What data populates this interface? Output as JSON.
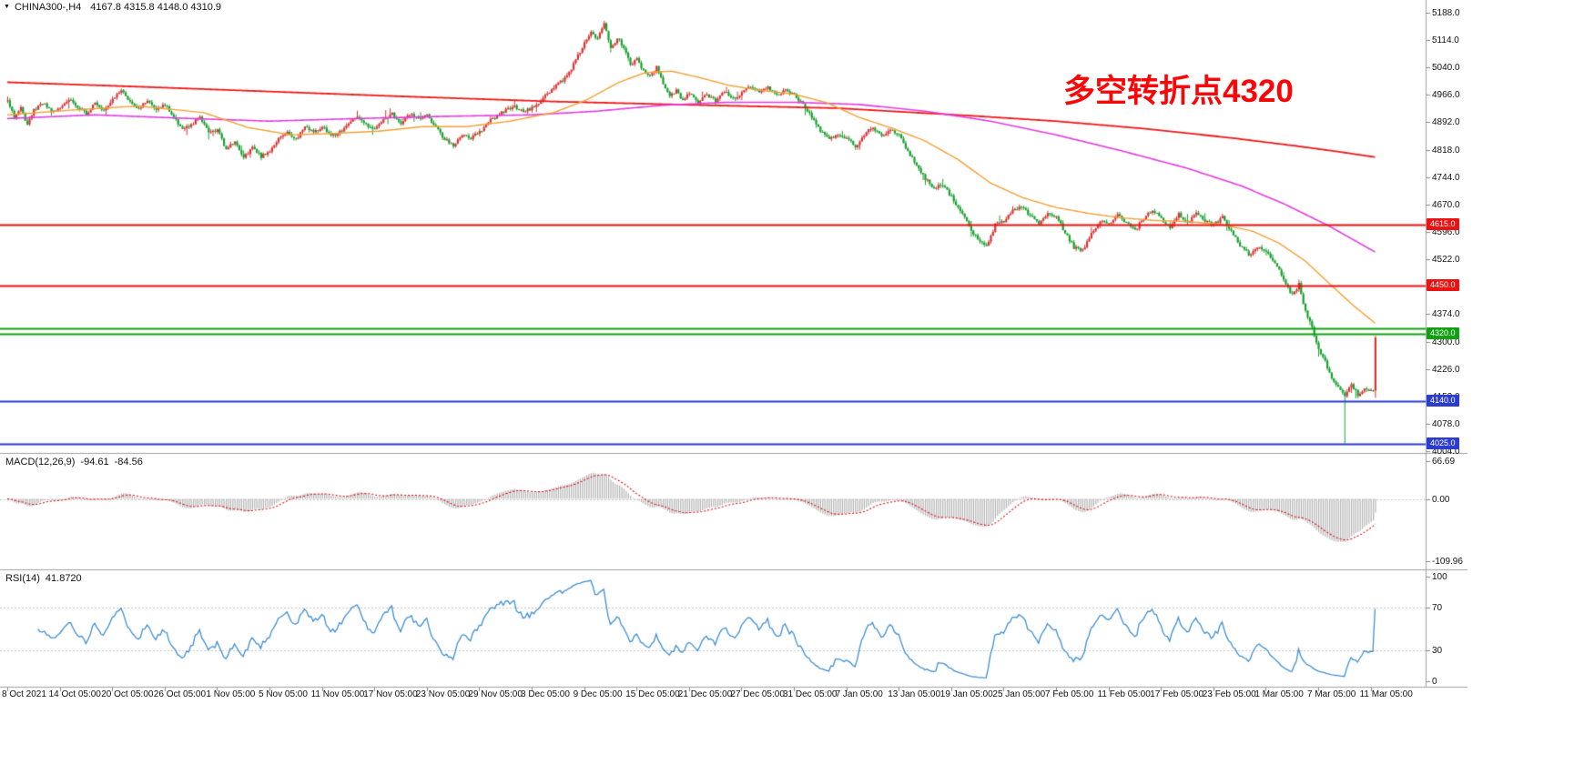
{
  "window": {
    "dropdown_icon": "▼",
    "symbol_timeframe": "CHINA300-,H4",
    "ohlc": "4167.8 4315.8 4148.0 4310.9"
  },
  "annotation": {
    "text": "多空转折点4320",
    "color": "#fb0606"
  },
  "colors": {
    "candle_up": "#d93232",
    "candle_down": "#17a02e",
    "macd_hist": "#b4b4b4",
    "macd_signal": "#e01010",
    "rsi_line": "#3f8fd2",
    "axis_text": "#111111",
    "separator": "#a0a0a0",
    "background": "#ffffff"
  },
  "chart_data": {
    "type": "candlestick",
    "symbol": "CHINA300-",
    "timeframe": "H4",
    "last_candle": {
      "open": 4167.8,
      "high": 4315.8,
      "low": 4148.0,
      "close": 4310.9
    },
    "price_axis": {
      "min": 4002,
      "max": 5222,
      "ticks": [
        "5188.0",
        "5114.0",
        "5040.0",
        "4966.0",
        "4892.0",
        "4818.0",
        "4744.0",
        "4670.0",
        "4596.0",
        "4522.0",
        "4448.0",
        "4374.0",
        "4300.0",
        "4226.0",
        "4152.0",
        "4078.0",
        "4004.0"
      ]
    },
    "time_labels": [
      "8 Oct 2021",
      "14 Oct 05:00",
      "20 Oct 05:00",
      "26 Oct 05:00",
      "1 Nov 05:00",
      "5 Nov 05:00",
      "11 Nov 05:00",
      "17 Nov 05:00",
      "23 Nov 05:00",
      "29 Nov 05:00",
      "3 Dec 05:00",
      "9 Dec 05:00",
      "15 Dec 05:00",
      "21 Dec 05:00",
      "27 Dec 05:00",
      "31 Dec 05:00",
      "7 Jan 05:00",
      "13 Jan 05:00",
      "19 Jan 05:00",
      "25 Jan 05:00",
      "7 Feb 05:00",
      "11 Feb 05:00",
      "17 Feb 05:00",
      "23 Feb 05:00",
      "1 Mar 05:00",
      "7 Mar 05:00",
      "11 Mar 05:00"
    ],
    "hlines": [
      {
        "price": 4615.0,
        "label": "4615.0",
        "color": "#ee1111",
        "width": 2
      },
      {
        "price": 4450.0,
        "label": "4450.0",
        "color": "#ee1111",
        "width": 2
      },
      {
        "price": 4336.0,
        "label": "",
        "color": "#11a011",
        "width": 2
      },
      {
        "price": 4320.0,
        "label": "4320.0",
        "color": "#11a011",
        "width": 2
      },
      {
        "price": 4140.0,
        "label": "4140.0",
        "color": "#2b3cd0",
        "width": 2
      },
      {
        "price": 4025.0,
        "label": "4025.0",
        "color": "#2b3cd0",
        "width": 2
      }
    ],
    "spike_low": {
      "index": 612,
      "low": 4025.0
    },
    "close_path": [
      [
        0,
        4950
      ],
      [
        3,
        4905
      ],
      [
        6,
        4930
      ],
      [
        9,
        4885
      ],
      [
        12,
        4925
      ],
      [
        16,
        4945
      ],
      [
        20,
        4920
      ],
      [
        24,
        4930
      ],
      [
        28,
        4955
      ],
      [
        32,
        4935
      ],
      [
        36,
        4915
      ],
      [
        40,
        4945
      ],
      [
        44,
        4925
      ],
      [
        48,
        4955
      ],
      [
        52,
        4975
      ],
      [
        56,
        4950
      ],
      [
        60,
        4930
      ],
      [
        64,
        4950
      ],
      [
        68,
        4930
      ],
      [
        72,
        4940
      ],
      [
        76,
        4905
      ],
      [
        80,
        4870
      ],
      [
        84,
        4885
      ],
      [
        88,
        4905
      ],
      [
        92,
        4865
      ],
      [
        96,
        4870
      ],
      [
        100,
        4820
      ],
      [
        104,
        4840
      ],
      [
        108,
        4795
      ],
      [
        112,
        4825
      ],
      [
        116,
        4800
      ],
      [
        120,
        4815
      ],
      [
        124,
        4850
      ],
      [
        128,
        4865
      ],
      [
        132,
        4845
      ],
      [
        136,
        4880
      ],
      [
        140,
        4865
      ],
      [
        144,
        4880
      ],
      [
        148,
        4855
      ],
      [
        152,
        4865
      ],
      [
        156,
        4890
      ],
      [
        160,
        4905
      ],
      [
        164,
        4885
      ],
      [
        168,
        4875
      ],
      [
        172,
        4900
      ],
      [
        176,
        4915
      ],
      [
        180,
        4890
      ],
      [
        184,
        4915
      ],
      [
        188,
        4900
      ],
      [
        192,
        4910
      ],
      [
        196,
        4880
      ],
      [
        200,
        4845
      ],
      [
        204,
        4830
      ],
      [
        208,
        4860
      ],
      [
        212,
        4850
      ],
      [
        216,
        4865
      ],
      [
        220,
        4895
      ],
      [
        224,
        4910
      ],
      [
        228,
        4925
      ],
      [
        232,
        4935
      ],
      [
        236,
        4920
      ],
      [
        240,
        4930
      ],
      [
        244,
        4950
      ],
      [
        248,
        4975
      ],
      [
        252,
        4995
      ],
      [
        256,
        5015
      ],
      [
        260,
        5060
      ],
      [
        264,
        5105
      ],
      [
        267,
        5140
      ],
      [
        270,
        5115
      ],
      [
        273,
        5158
      ],
      [
        276,
        5090
      ],
      [
        279,
        5120
      ],
      [
        282,
        5095
      ],
      [
        285,
        5045
      ],
      [
        288,
        5065
      ],
      [
        291,
        5030
      ],
      [
        294,
        5015
      ],
      [
        297,
        5040
      ],
      [
        300,
        4995
      ],
      [
        303,
        4960
      ],
      [
        306,
        4980
      ],
      [
        309,
        4950
      ],
      [
        312,
        4970
      ],
      [
        316,
        4945
      ],
      [
        320,
        4965
      ],
      [
        324,
        4950
      ],
      [
        328,
        4975
      ],
      [
        332,
        4955
      ],
      [
        336,
        4970
      ],
      [
        340,
        4990
      ],
      [
        344,
        4970
      ],
      [
        348,
        4985
      ],
      [
        352,
        4965
      ],
      [
        356,
        4980
      ],
      [
        360,
        4965
      ],
      [
        364,
        4940
      ],
      [
        368,
        4905
      ],
      [
        372,
        4870
      ],
      [
        376,
        4845
      ],
      [
        380,
        4860
      ],
      [
        384,
        4850
      ],
      [
        388,
        4825
      ],
      [
        392,
        4860
      ],
      [
        396,
        4880
      ],
      [
        400,
        4855
      ],
      [
        404,
        4875
      ],
      [
        408,
        4855
      ],
      [
        412,
        4815
      ],
      [
        416,
        4775
      ],
      [
        420,
        4740
      ],
      [
        424,
        4715
      ],
      [
        428,
        4725
      ],
      [
        432,
        4690
      ],
      [
        436,
        4655
      ],
      [
        440,
        4610
      ],
      [
        444,
        4575
      ],
      [
        448,
        4555
      ],
      [
        452,
        4615
      ],
      [
        456,
        4625
      ],
      [
        460,
        4655
      ],
      [
        464,
        4665
      ],
      [
        468,
        4640
      ],
      [
        472,
        4620
      ],
      [
        476,
        4645
      ],
      [
        480,
        4635
      ],
      [
        484,
        4595
      ],
      [
        488,
        4555
      ],
      [
        492,
        4545
      ],
      [
        496,
        4595
      ],
      [
        500,
        4625
      ],
      [
        504,
        4615
      ],
      [
        508,
        4645
      ],
      [
        512,
        4620
      ],
      [
        516,
        4600
      ],
      [
        520,
        4635
      ],
      [
        524,
        4655
      ],
      [
        528,
        4630
      ],
      [
        532,
        4605
      ],
      [
        536,
        4645
      ],
      [
        540,
        4620
      ],
      [
        544,
        4650
      ],
      [
        548,
        4625
      ],
      [
        552,
        4615
      ],
      [
        556,
        4635
      ],
      [
        560,
        4600
      ],
      [
        564,
        4560
      ],
      [
        568,
        4535
      ],
      [
        572,
        4555
      ],
      [
        576,
        4545
      ],
      [
        580,
        4515
      ],
      [
        584,
        4465
      ],
      [
        588,
        4425
      ],
      [
        591,
        4455
      ],
      [
        594,
        4380
      ],
      [
        597,
        4340
      ],
      [
        600,
        4280
      ],
      [
        603,
        4245
      ],
      [
        606,
        4205
      ],
      [
        609,
        4175
      ],
      [
        612,
        4160
      ],
      [
        615,
        4185
      ],
      [
        618,
        4155
      ],
      [
        621,
        4170
      ],
      [
        624,
        4165
      ],
      [
        626,
        4311
      ]
    ],
    "moving_averages": [
      {
        "name": "ma-slow",
        "color": "#f01818",
        "width": 1.8,
        "points": [
          [
            0,
            5000
          ],
          [
            60,
            4988
          ],
          [
            120,
            4975
          ],
          [
            180,
            4962
          ],
          [
            250,
            4948
          ],
          [
            320,
            4938
          ],
          [
            380,
            4930
          ],
          [
            440,
            4910
          ],
          [
            480,
            4895
          ],
          [
            520,
            4875
          ],
          [
            560,
            4850
          ],
          [
            590,
            4828
          ],
          [
            610,
            4812
          ],
          [
            626,
            4798
          ]
        ]
      },
      {
        "name": "ma-mid",
        "color": "#e23ce2",
        "width": 1.6,
        "points": [
          [
            0,
            4902
          ],
          [
            40,
            4912
          ],
          [
            80,
            4903
          ],
          [
            120,
            4895
          ],
          [
            160,
            4902
          ],
          [
            200,
            4908
          ],
          [
            240,
            4912
          ],
          [
            270,
            4922
          ],
          [
            300,
            4938
          ],
          [
            330,
            4946
          ],
          [
            360,
            4946
          ],
          [
            390,
            4940
          ],
          [
            420,
            4922
          ],
          [
            450,
            4895
          ],
          [
            480,
            4858
          ],
          [
            510,
            4815
          ],
          [
            540,
            4768
          ],
          [
            565,
            4720
          ],
          [
            585,
            4670
          ],
          [
            605,
            4612
          ],
          [
            626,
            4542
          ]
        ]
      },
      {
        "name": "ma-fast",
        "color": "#f5a035",
        "width": 1.4,
        "points": [
          [
            0,
            4912
          ],
          [
            30,
            4925
          ],
          [
            60,
            4936
          ],
          [
            90,
            4918
          ],
          [
            110,
            4878
          ],
          [
            130,
            4858
          ],
          [
            150,
            4862
          ],
          [
            170,
            4868
          ],
          [
            190,
            4880
          ],
          [
            210,
            4880
          ],
          [
            230,
            4895
          ],
          [
            250,
            4918
          ],
          [
            265,
            4952
          ],
          [
            280,
            5000
          ],
          [
            292,
            5026
          ],
          [
            304,
            5030
          ],
          [
            316,
            5014
          ],
          [
            330,
            4992
          ],
          [
            345,
            4978
          ],
          [
            360,
            4968
          ],
          [
            375,
            4945
          ],
          [
            390,
            4905
          ],
          [
            405,
            4876
          ],
          [
            420,
            4842
          ],
          [
            435,
            4792
          ],
          [
            450,
            4728
          ],
          [
            465,
            4688
          ],
          [
            480,
            4662
          ],
          [
            495,
            4646
          ],
          [
            510,
            4634
          ],
          [
            525,
            4627
          ],
          [
            540,
            4624
          ],
          [
            555,
            4617
          ],
          [
            570,
            4598
          ],
          [
            582,
            4566
          ],
          [
            594,
            4518
          ],
          [
            606,
            4452
          ],
          [
            616,
            4398
          ],
          [
            626,
            4350
          ]
        ]
      }
    ],
    "macd": {
      "label": "MACD(12,26,9)",
      "main_value": "-94.61",
      "signal_value": "-84.56",
      "params": [
        12,
        26,
        9
      ],
      "axis_ticks": [
        {
          "value": 66.69,
          "label": "66.69"
        },
        {
          "value": 0,
          "label": "0.00"
        },
        {
          "value": -109.96,
          "label": "-109.96"
        }
      ]
    },
    "rsi": {
      "label": "RSI(14)",
      "value": "41.8720",
      "period": 14,
      "levels": [
        70,
        30
      ],
      "axis_ticks": [
        {
          "value": 100,
          "label": "100"
        },
        {
          "value": 70,
          "label": "70"
        },
        {
          "value": 30,
          "label": "30"
        },
        {
          "value": 0,
          "label": "0"
        }
      ]
    }
  }
}
